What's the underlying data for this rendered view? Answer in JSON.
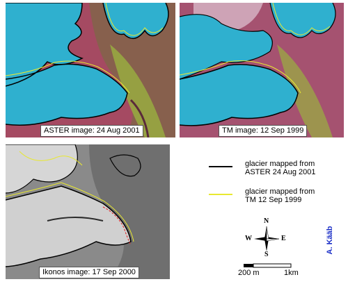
{
  "panels": [
    {
      "caption": "ASTER image: 24 Aug 2001",
      "style": "false-color"
    },
    {
      "caption": "TM image: 12 Sep 1999",
      "style": "false-color"
    },
    {
      "caption": "Ikonos image: 17 Sep 2000",
      "style": "grayscale"
    }
  ],
  "legend": {
    "items": [
      {
        "line1": "glacier mapped from",
        "line2": "ASTER 24 Aug 2001",
        "color": "#000000"
      },
      {
        "line1": "glacier mapped from",
        "line2": "TM 12 Sep 1999",
        "color": "#e8e830"
      }
    ]
  },
  "compass": {
    "n": "N",
    "s": "S",
    "e": "E",
    "w": "W"
  },
  "scale": {
    "label_left": "200 m",
    "label_right": "1km"
  },
  "author": "A. Kääb",
  "colors": {
    "glacier": "#2fb0cf",
    "rock": "#9a4a60",
    "vegetation": "#9ab040",
    "aster_outline": "#000000",
    "tm_outline": "#e8e830",
    "ikonos_red_outline": "#e02020",
    "author_text": "#1b2fc7"
  }
}
